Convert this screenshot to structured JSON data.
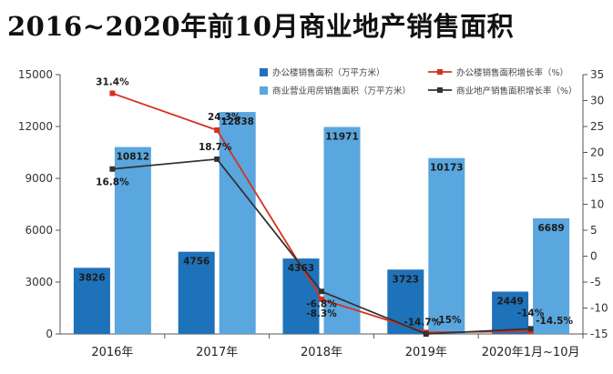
{
  "title": "2016~2020年前10月商业地产销售面积",
  "chart_data": {
    "type": "bar+line",
    "categories": [
      "2016年",
      "2017年",
      "2018年",
      "2019年",
      "2020年1月~10月"
    ],
    "bar_series": [
      {
        "name": "办公楼销售面积（万平方米）",
        "values": [
          3826,
          4756,
          4363,
          3723,
          2449
        ],
        "color": "#1e72ba",
        "value_labels": [
          "3826",
          "4756",
          "4363",
          "3723",
          "2449"
        ]
      },
      {
        "name": "商业营业用房销售面积（万平方米）",
        "values": [
          10812,
          12838,
          11971,
          10173,
          6689
        ],
        "color": "#5aa6de",
        "value_labels": [
          "10812",
          "12838",
          "11971",
          "10173",
          "6689"
        ]
      }
    ],
    "line_series": [
      {
        "name": "办公楼销售面积增长率（%）",
        "values": [
          31.4,
          24.3,
          -8.3,
          -14.7,
          -14.5
        ],
        "color": "#d7301f",
        "value_labels": [
          "31.4%",
          "24.3%",
          "-8.3%",
          "-14.7%",
          "-14.5%"
        ]
      },
      {
        "name": "商业地产销售面积增长率（%）",
        "values": [
          16.8,
          18.7,
          -6.8,
          -15,
          -14
        ],
        "color": "#333333",
        "value_labels": [
          "16.8%",
          "18.7%",
          "-6.8%",
          "-15%",
          "-14%"
        ]
      }
    ],
    "y_left": {
      "min": 0,
      "max": 15000,
      "ticks": [
        0,
        3000,
        6000,
        9000,
        12000,
        15000
      ]
    },
    "y_right": {
      "min": -15,
      "max": 35,
      "ticks": [
        -15,
        -10,
        -5,
        0,
        5,
        10,
        15,
        20,
        25,
        30,
        35
      ]
    },
    "legend_position": "top-right",
    "grid": false
  }
}
